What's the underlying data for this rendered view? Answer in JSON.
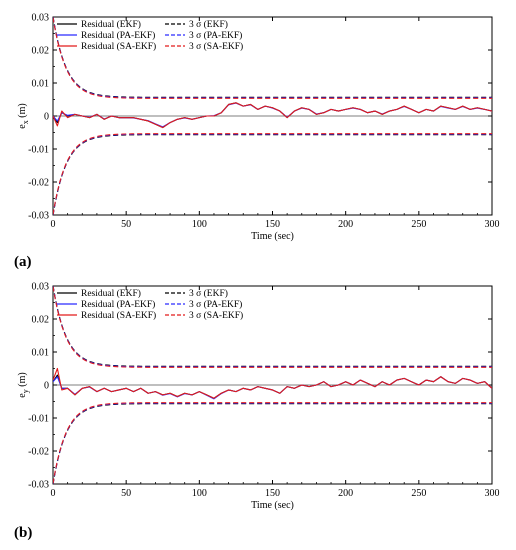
{
  "panels": [
    {
      "tag": "(a)",
      "chart_data": {
        "type": "line",
        "xlabel": "Time (sec)",
        "ylabel_main": "e",
        "ylabel_sub": "x",
        "ylabel_unit": " (m)",
        "xlim": [
          0,
          300
        ],
        "ylim": [
          -0.03,
          0.03
        ],
        "xticks": [
          0,
          50,
          100,
          150,
          200,
          250,
          300
        ],
        "yticks": [
          -0.03,
          -0.02,
          -0.01,
          0,
          0.01,
          0.02,
          0.03
        ],
        "ytick_labels": [
          "-0.03",
          "-0.02",
          "-0.01",
          "0",
          "0.01",
          "0.02",
          "0.03"
        ],
        "grid": false,
        "legend_position": "top-left",
        "sigma_bound": {
          "initial": 0.03,
          "steady": 0.0055,
          "tau": 9
        },
        "series": [
          {
            "name": "Residual (EKF)",
            "style": "solid",
            "color": "#000000",
            "x": [
              0,
              3,
              6,
              10,
              15,
              20,
              25,
              30,
              35,
              40,
              45,
              50,
              55,
              60,
              65,
              70,
              75,
              80,
              85,
              90,
              95,
              100,
              105,
              110,
              115,
              120,
              125,
              130,
              135,
              140,
              145,
              150,
              155,
              160,
              165,
              170,
              175,
              180,
              185,
              190,
              195,
              200,
              205,
              210,
              215,
              220,
              225,
              230,
              235,
              240,
              245,
              250,
              255,
              260,
              265,
              270,
              275,
              280,
              285,
              290,
              295,
              300
            ],
            "y": [
              0,
              -0.002,
              0.001,
              0,
              0.0005,
              0,
              -0.0005,
              0.0005,
              -0.001,
              0,
              -0.0005,
              -0.0005,
              -0.0005,
              -0.001,
              -0.0015,
              -0.0025,
              -0.0035,
              -0.002,
              -0.001,
              -0.0005,
              -0.001,
              -0.0005,
              0,
              0,
              0.001,
              0.0035,
              0.004,
              0.003,
              0.0035,
              0.002,
              0.003,
              0.0025,
              0.0015,
              -0.0005,
              0.0015,
              0.0025,
              0.002,
              0.0005,
              0.001,
              0.002,
              0.0015,
              0.002,
              0.0025,
              0.002,
              0.001,
              0.0015,
              0.0005,
              0.0015,
              0.002,
              0.003,
              0.002,
              0.001,
              0.002,
              0.0015,
              0.003,
              0.0025,
              0.002,
              0.003,
              0.002,
              0.0025,
              0.002,
              0.0015
            ]
          },
          {
            "name": "Residual (PA-EKF)",
            "style": "solid",
            "color": "#2b2bff",
            "x": [
              0,
              3,
              6,
              10,
              15,
              20,
              25,
              30,
              35,
              40,
              45,
              50,
              55,
              60,
              65,
              70,
              75,
              80,
              85,
              90,
              95,
              100,
              105,
              110,
              115,
              120,
              125,
              130,
              135,
              140,
              145,
              150,
              155,
              160,
              165,
              170,
              175,
              180,
              185,
              190,
              195,
              200,
              205,
              210,
              215,
              220,
              225,
              230,
              235,
              240,
              245,
              250,
              255,
              260,
              265,
              270,
              275,
              280,
              285,
              290,
              295,
              300
            ],
            "y": [
              0,
              -0.0015,
              0.001,
              0.0002,
              0.0005,
              0,
              -0.0004,
              0.0005,
              -0.0009,
              0,
              -0.0005,
              -0.0005,
              -0.0006,
              -0.001,
              -0.0014,
              -0.0024,
              -0.0033,
              -0.002,
              -0.001,
              -0.0006,
              -0.001,
              -0.0005,
              0,
              0.0001,
              0.001,
              0.0034,
              0.0039,
              0.003,
              0.0034,
              0.002,
              0.003,
              0.0024,
              0.0015,
              -0.0004,
              0.0015,
              0.0024,
              0.002,
              0.0006,
              0.001,
              0.002,
              0.0015,
              0.002,
              0.0024,
              0.002,
              0.001,
              0.0015,
              0.0006,
              0.0015,
              0.002,
              0.0029,
              0.002,
              0.001,
              0.002,
              0.0015,
              0.0029,
              0.0024,
              0.002,
              0.0029,
              0.002,
              0.0024,
              0.002,
              0.0015
            ]
          },
          {
            "name": "Residual (SA-EKF)",
            "style": "solid",
            "color": "#e21b1b",
            "x": [
              0,
              3,
              6,
              10,
              15,
              20,
              25,
              30,
              35,
              40,
              45,
              50,
              55,
              60,
              65,
              70,
              75,
              80,
              85,
              90,
              95,
              100,
              105,
              110,
              115,
              120,
              125,
              130,
              135,
              140,
              145,
              150,
              155,
              160,
              165,
              170,
              175,
              180,
              185,
              190,
              195,
              200,
              205,
              210,
              215,
              220,
              225,
              230,
              235,
              240,
              245,
              250,
              255,
              260,
              265,
              270,
              275,
              280,
              285,
              290,
              295,
              300
            ],
            "y": [
              0,
              -0.003,
              0.0015,
              -0.0005,
              0.0005,
              0,
              -0.0005,
              0.0005,
              -0.001,
              0,
              -0.0005,
              -0.0005,
              -0.0005,
              -0.001,
              -0.0015,
              -0.0025,
              -0.0035,
              -0.002,
              -0.001,
              -0.0005,
              -0.001,
              -0.0005,
              0,
              0,
              0.001,
              0.0035,
              0.004,
              0.003,
              0.0035,
              0.002,
              0.003,
              0.0025,
              0.0015,
              -0.0005,
              0.0015,
              0.0025,
              0.002,
              0.0005,
              0.001,
              0.002,
              0.0015,
              0.002,
              0.0025,
              0.002,
              0.001,
              0.0015,
              0.0005,
              0.0015,
              0.002,
              0.003,
              0.002,
              0.001,
              0.002,
              0.0015,
              0.003,
              0.0025,
              0.002,
              0.003,
              0.002,
              0.0025,
              0.002,
              0.0015
            ]
          },
          {
            "name": "3 σ (EKF)",
            "style": "dashed",
            "color": "#000000"
          },
          {
            "name": "3 σ (PA-EKF)",
            "style": "dashed",
            "color": "#2b2bff"
          },
          {
            "name": "3 σ (SA-EKF)",
            "style": "dashed",
            "color": "#e21b1b"
          }
        ]
      }
    },
    {
      "tag": "(b)",
      "chart_data": {
        "type": "line",
        "xlabel": "Time (sec)",
        "ylabel_main": "e",
        "ylabel_sub": "y",
        "ylabel_unit": " (m)",
        "xlim": [
          0,
          300
        ],
        "ylim": [
          -0.03,
          0.03
        ],
        "xticks": [
          0,
          50,
          100,
          150,
          200,
          250,
          300
        ],
        "yticks": [
          -0.03,
          -0.02,
          -0.01,
          0,
          0.01,
          0.02,
          0.03
        ],
        "ytick_labels": [
          "-0.03",
          "-0.02",
          "-0.01",
          "0",
          "0.01",
          "0.02",
          "0.03"
        ],
        "grid": false,
        "legend_position": "top-left",
        "sigma_bound": {
          "initial": 0.03,
          "steady": 0.0055,
          "tau": 9
        },
        "series": [
          {
            "name": "Residual (EKF)",
            "style": "solid",
            "color": "#000000",
            "x": [
              0,
              3,
              6,
              10,
              15,
              20,
              25,
              30,
              35,
              40,
              45,
              50,
              55,
              60,
              65,
              70,
              75,
              80,
              85,
              90,
              95,
              100,
              105,
              110,
              115,
              120,
              125,
              130,
              135,
              140,
              145,
              150,
              155,
              160,
              165,
              170,
              175,
              180,
              185,
              190,
              195,
              200,
              205,
              210,
              215,
              220,
              225,
              230,
              235,
              240,
              245,
              250,
              255,
              260,
              265,
              270,
              275,
              280,
              285,
              290,
              295,
              300
            ],
            "y": [
              0.001,
              0.003,
              -0.001,
              -0.001,
              -0.003,
              -0.001,
              -0.0005,
              -0.002,
              -0.001,
              -0.002,
              -0.0015,
              -0.001,
              -0.002,
              -0.001,
              -0.0025,
              -0.002,
              -0.003,
              -0.0025,
              -0.0035,
              -0.0025,
              -0.003,
              -0.002,
              -0.003,
              -0.004,
              -0.0025,
              -0.0015,
              -0.002,
              -0.001,
              -0.0015,
              -0.0005,
              -0.001,
              -0.0015,
              -0.0025,
              -0.0005,
              -0.001,
              0,
              -0.0005,
              0,
              0.001,
              -0.0005,
              0,
              0.001,
              0,
              0.0015,
              0.0005,
              -0.0005,
              0.001,
              0,
              0.0015,
              0.002,
              0.001,
              0,
              0.0015,
              0.001,
              0.0025,
              0.001,
              0.0005,
              0.002,
              0.0015,
              0.0005,
              0.001,
              -0.001
            ]
          },
          {
            "name": "Residual (PA-EKF)",
            "style": "solid",
            "color": "#2b2bff",
            "x": [
              0,
              3,
              6,
              10,
              15,
              20,
              25,
              30,
              35,
              40,
              45,
              50,
              55,
              60,
              65,
              70,
              75,
              80,
              85,
              90,
              95,
              100,
              105,
              110,
              115,
              120,
              125,
              130,
              135,
              140,
              145,
              150,
              155,
              160,
              165,
              170,
              175,
              180,
              185,
              190,
              195,
              200,
              205,
              210,
              215,
              220,
              225,
              230,
              235,
              240,
              245,
              250,
              255,
              260,
              265,
              270,
              275,
              280,
              285,
              290,
              295,
              300
            ],
            "y": [
              0.001,
              0.0025,
              -0.001,
              -0.001,
              -0.0028,
              -0.001,
              -0.0006,
              -0.002,
              -0.001,
              -0.002,
              -0.0015,
              -0.001,
              -0.002,
              -0.001,
              -0.0025,
              -0.002,
              -0.0031,
              -0.0026,
              -0.0036,
              -0.0026,
              -0.003,
              -0.002,
              -0.0031,
              -0.0042,
              -0.0026,
              -0.0015,
              -0.002,
              -0.001,
              -0.0015,
              -0.0005,
              -0.001,
              -0.0015,
              -0.0025,
              -0.0005,
              -0.001,
              0,
              -0.0005,
              0,
              0.001,
              -0.0005,
              0,
              0.001,
              0,
              0.0015,
              0.0005,
              -0.0005,
              0.001,
              0,
              0.0015,
              0.002,
              0.001,
              0,
              0.0015,
              0.001,
              0.0025,
              0.001,
              0.0005,
              0.002,
              0.0015,
              0.0005,
              0.001,
              -0.001
            ]
          },
          {
            "name": "Residual (SA-EKF)",
            "style": "solid",
            "color": "#e21b1b",
            "x": [
              0,
              3,
              6,
              10,
              15,
              20,
              25,
              30,
              35,
              40,
              45,
              50,
              55,
              60,
              65,
              70,
              75,
              80,
              85,
              90,
              95,
              100,
              105,
              110,
              115,
              120,
              125,
              130,
              135,
              140,
              145,
              150,
              155,
              160,
              165,
              170,
              175,
              180,
              185,
              190,
              195,
              200,
              205,
              210,
              215,
              220,
              225,
              230,
              235,
              240,
              245,
              250,
              255,
              260,
              265,
              270,
              275,
              280,
              285,
              290,
              295,
              300
            ],
            "y": [
              0.0015,
              0.005,
              -0.0015,
              -0.001,
              -0.003,
              -0.001,
              -0.0005,
              -0.002,
              -0.001,
              -0.002,
              -0.0015,
              -0.001,
              -0.002,
              -0.001,
              -0.0025,
              -0.002,
              -0.003,
              -0.0025,
              -0.0035,
              -0.0025,
              -0.003,
              -0.002,
              -0.003,
              -0.004,
              -0.0025,
              -0.0015,
              -0.002,
              -0.001,
              -0.0015,
              -0.0005,
              -0.001,
              -0.0015,
              -0.0025,
              -0.0005,
              -0.001,
              0,
              -0.0005,
              0,
              0.001,
              -0.0005,
              0,
              0.001,
              0,
              0.0015,
              0.0005,
              -0.0005,
              0.001,
              0,
              0.0015,
              0.002,
              0.001,
              0,
              0.0015,
              0.001,
              0.0025,
              0.001,
              0.0005,
              0.002,
              0.0015,
              0.0005,
              0.001,
              -0.001
            ]
          },
          {
            "name": "3 σ (EKF)",
            "style": "dashed",
            "color": "#000000"
          },
          {
            "name": "3 σ (PA-EKF)",
            "style": "dashed",
            "color": "#2b2bff"
          },
          {
            "name": "3 σ (SA-EKF)",
            "style": "dashed",
            "color": "#e21b1b"
          }
        ]
      }
    }
  ]
}
